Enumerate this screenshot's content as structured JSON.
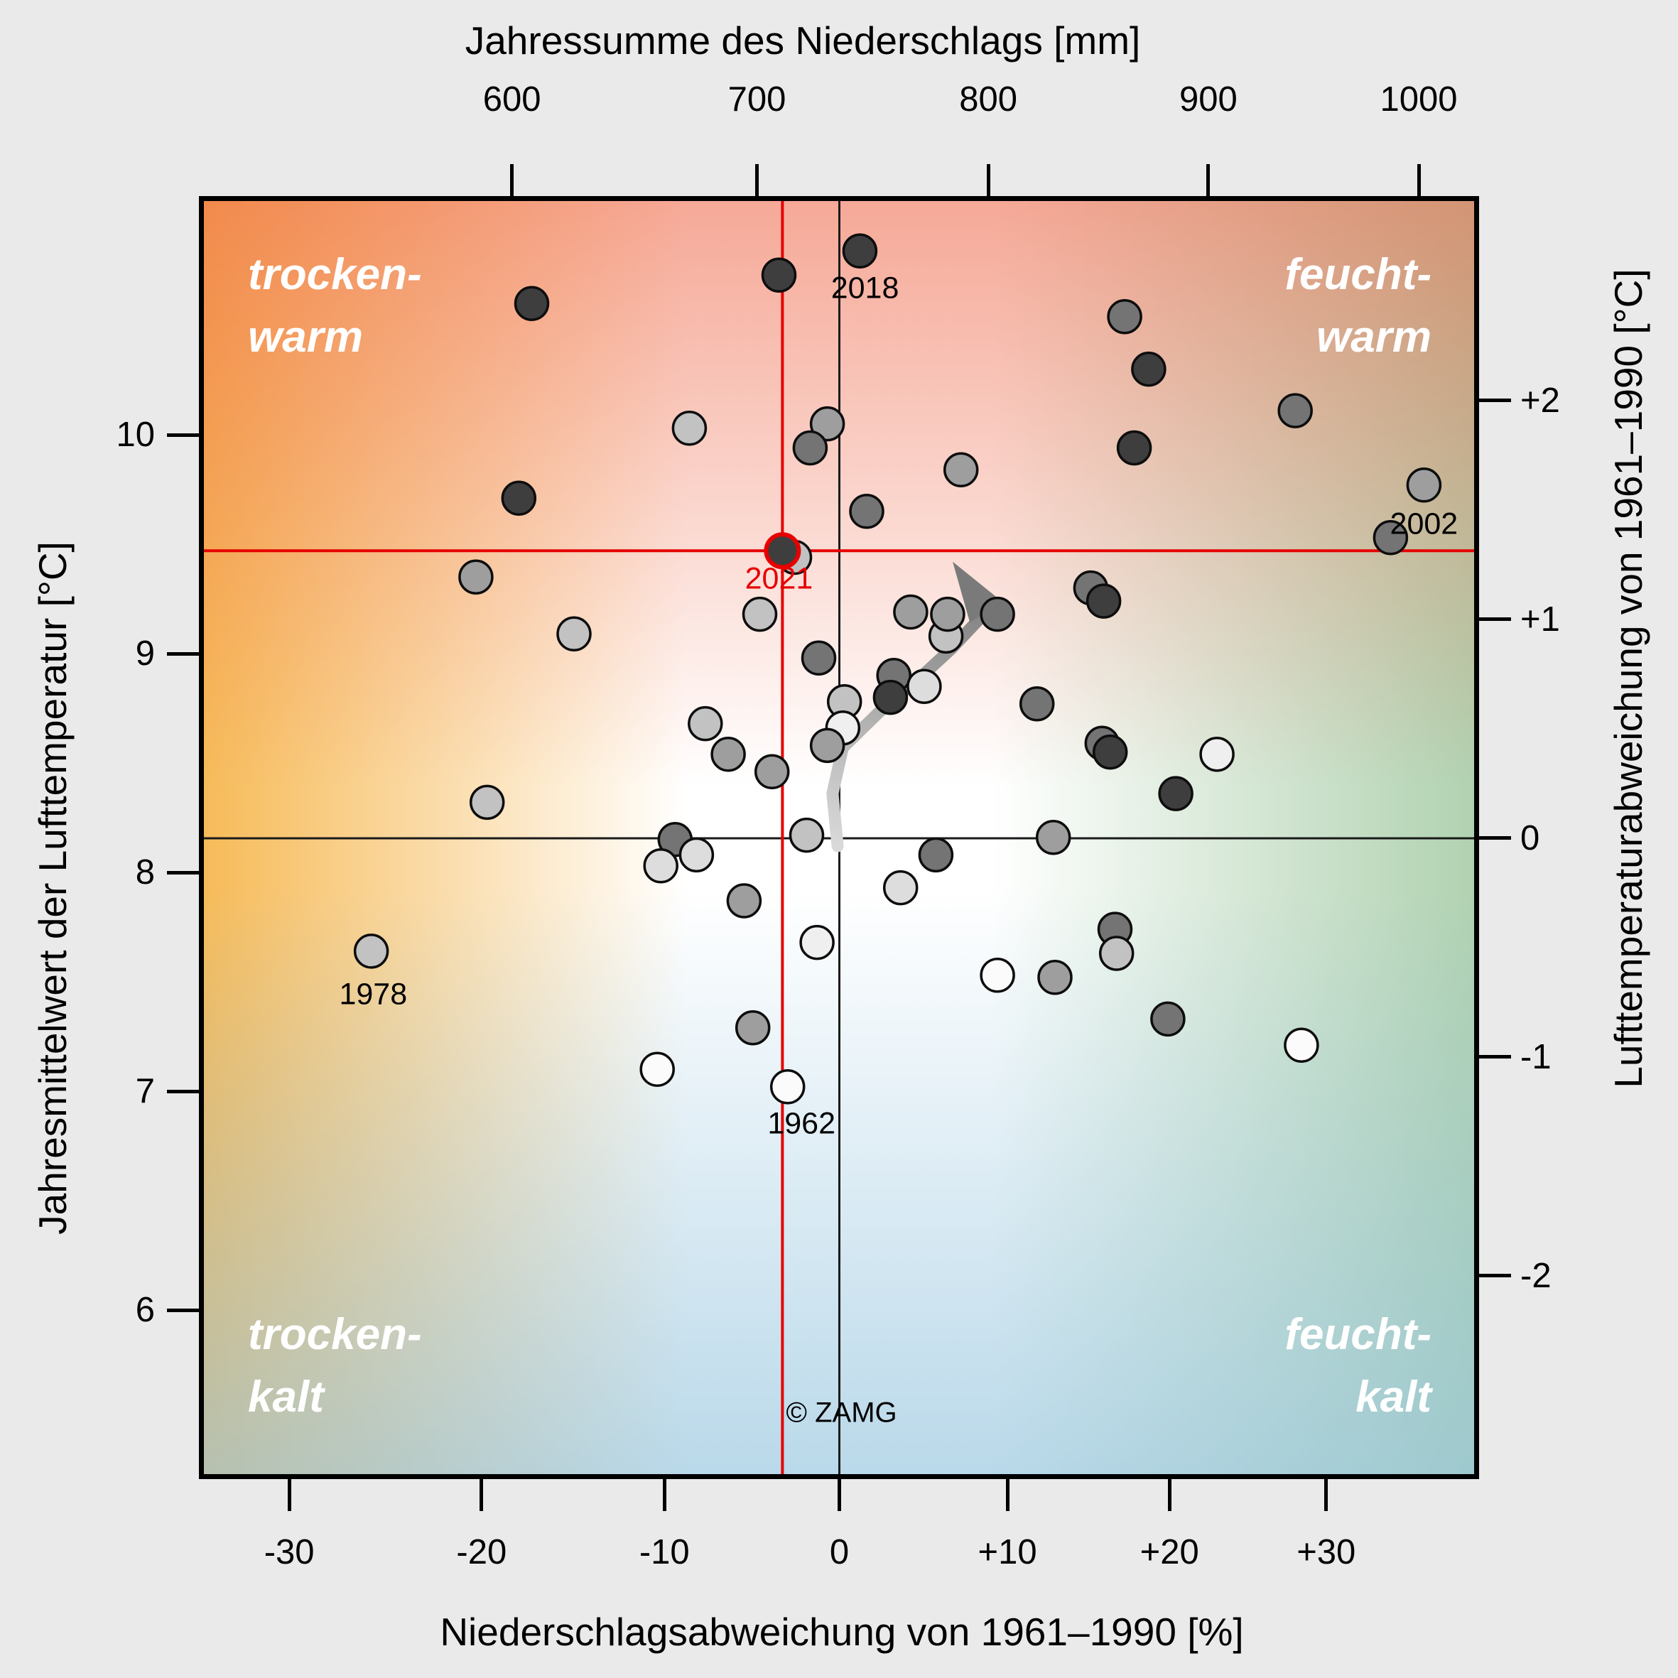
{
  "chart_data": {
    "type": "scatter",
    "source_watermark": "© ZAMG",
    "axes": {
      "top": {
        "label": "Jahressumme des Niederschlags [mm]",
        "ticks": [
          {
            "mm": 600,
            "label": "600"
          },
          {
            "mm": 700,
            "label": "700"
          },
          {
            "mm": 800,
            "label": "800"
          },
          {
            "mm": 900,
            "label": "900"
          },
          {
            "mm": 1000,
            "label": "1000"
          }
        ]
      },
      "bottom": {
        "label": "Niederschlagsabweichung von 1961–1990 [%]",
        "ticks": [
          {
            "pct": -30,
            "label": "-30"
          },
          {
            "pct": -20,
            "label": "-20"
          },
          {
            "pct": -10,
            "label": "-10"
          },
          {
            "pct": 0,
            "label": "0"
          },
          {
            "pct": 10,
            "label": "+10"
          },
          {
            "pct": 20,
            "label": "+20"
          },
          {
            "pct": 30,
            "label": "+30"
          }
        ]
      },
      "left": {
        "label": "Jahresmittelwert der Lufttemperatur [°C]",
        "ticks": [
          {
            "t": 6,
            "label": "6"
          },
          {
            "t": 7,
            "label": "7"
          },
          {
            "t": 8,
            "label": "8"
          },
          {
            "t": 9,
            "label": "9"
          },
          {
            "t": 10,
            "label": "10"
          }
        ]
      },
      "right": {
        "label": "Lufttemperaturabweichung von 1961–1990 [°C]",
        "ticks": [
          {
            "off": -2,
            "label": "-2"
          },
          {
            "off": -1,
            "label": "-1"
          },
          {
            "off": 0,
            "label": "0"
          },
          {
            "off": 1,
            "label": "+1"
          },
          {
            "off": 2,
            "label": "+2"
          }
        ]
      }
    },
    "baseline": {
      "temp_mean_c": 8.16,
      "precip_normal_mm": 735
    },
    "reference_lines": {
      "black_cross": {
        "pct": 0,
        "temp": 8.156
      },
      "red_cross": {
        "pct": -3.3,
        "temp": 9.47
      }
    },
    "colors": {
      "accent_red": "#e60000",
      "line_black": "#1a1a1a",
      "point_stroke": "#0d0d0d",
      "shade_palette": [
        "#fbfbfb",
        "#efefef",
        "#dddddd",
        "#c2c2c2",
        "#9e9e9e",
        "#747474",
        "#3e3e3e"
      ],
      "trend_gradient": [
        "#d9d9d9",
        "#7a7a7a"
      ]
    },
    "quadrant_labels": [
      {
        "name": "trocken-warm",
        "text": "trocken-\nwarm",
        "corner": "top-left"
      },
      {
        "name": "feucht-warm",
        "text": "feucht-\nwarm",
        "corner": "top-right"
      },
      {
        "name": "trocken-kalt",
        "text": "trocken-\nkalt",
        "corner": "bottom-left"
      },
      {
        "name": "feucht-kalt",
        "text": "feucht-\nkalt",
        "corner": "bottom-right"
      }
    ],
    "points": [
      {
        "p": -17.3,
        "t": 10.6,
        "s": 6
      },
      {
        "p": -18.0,
        "t": 9.71,
        "s": 6
      },
      {
        "p": -20.3,
        "t": 9.35,
        "s": 4
      },
      {
        "p": -15.0,
        "t": 9.09,
        "s": 3
      },
      {
        "p": 1.2,
        "t": 10.84,
        "s": 6,
        "year": "2018"
      },
      {
        "p": -3.5,
        "t": 10.73,
        "s": 6
      },
      {
        "p": -8.6,
        "t": 10.03,
        "s": 3
      },
      {
        "p": -0.7,
        "t": 10.05,
        "s": 4
      },
      {
        "p": -1.7,
        "t": 9.94,
        "s": 5
      },
      {
        "p": 7.2,
        "t": 9.84,
        "s": 4
      },
      {
        "p": 1.6,
        "t": 9.65,
        "s": 5
      },
      {
        "p": -2.6,
        "t": 9.44,
        "s": 3
      },
      {
        "p": -3.3,
        "t": 9.47,
        "s": 6,
        "year": "2021",
        "ring": true
      },
      {
        "p": -4.6,
        "t": 9.18,
        "s": 3
      },
      {
        "p": 4.2,
        "t": 9.19,
        "s": 4
      },
      {
        "p": 6.3,
        "t": 9.08,
        "s": 3
      },
      {
        "p": 6.4,
        "t": 9.18,
        "s": 4
      },
      {
        "p": 9.4,
        "t": 9.18,
        "s": 5
      },
      {
        "p": 15.1,
        "t": 9.3,
        "s": 5
      },
      {
        "p": 15.9,
        "t": 9.24,
        "s": 6
      },
      {
        "p": 17.2,
        "t": 10.54,
        "s": 5
      },
      {
        "p": 18.7,
        "t": 10.3,
        "s": 6
      },
      {
        "p": 28.0,
        "t": 10.11,
        "s": 5
      },
      {
        "p": 17.8,
        "t": 9.94,
        "s": 6
      },
      {
        "p": 36.4,
        "t": 9.77,
        "s": 4
      },
      {
        "p": 34.2,
        "t": 9.53,
        "s": 5,
        "year": "2002"
      },
      {
        "p": -19.7,
        "t": 8.32,
        "s": 3
      },
      {
        "p": -25.8,
        "t": 7.64,
        "s": 3,
        "year": "1978"
      },
      {
        "p": -1.2,
        "t": 8.98,
        "s": 5
      },
      {
        "p": 3.2,
        "t": 8.9,
        "s": 5
      },
      {
        "p": 3.0,
        "t": 8.8,
        "s": 6
      },
      {
        "p": 5.0,
        "t": 8.85,
        "s": 2
      },
      {
        "p": 0.3,
        "t": 8.78,
        "s": 3
      },
      {
        "p": 0.2,
        "t": 8.66,
        "s": 1
      },
      {
        "p": -0.7,
        "t": 8.58,
        "s": 4
      },
      {
        "p": 11.8,
        "t": 8.77,
        "s": 5
      },
      {
        "p": 15.8,
        "t": 8.59,
        "s": 5
      },
      {
        "p": 16.3,
        "t": 8.55,
        "s": 6
      },
      {
        "p": -7.7,
        "t": 8.68,
        "s": 3
      },
      {
        "p": -6.4,
        "t": 8.54,
        "s": 4
      },
      {
        "p": -3.9,
        "t": 8.46,
        "s": 4
      },
      {
        "p": -1.9,
        "t": 8.17,
        "s": 3
      },
      {
        "p": -9.4,
        "t": 8.15,
        "s": 5
      },
      {
        "p": -8.2,
        "t": 8.08,
        "s": 2
      },
      {
        "p": -10.2,
        "t": 8.03,
        "s": 2
      },
      {
        "p": 5.7,
        "t": 8.08,
        "s": 5
      },
      {
        "p": 12.8,
        "t": 8.16,
        "s": 4
      },
      {
        "p": 3.6,
        "t": 7.93,
        "s": 2
      },
      {
        "p": -5.5,
        "t": 7.87,
        "s": 4
      },
      {
        "p": -1.3,
        "t": 7.68,
        "s": 1
      },
      {
        "p": 9.4,
        "t": 7.53,
        "s": 0
      },
      {
        "p": 12.9,
        "t": 7.52,
        "s": 4
      },
      {
        "p": 16.6,
        "t": 7.74,
        "s": 5
      },
      {
        "p": 16.7,
        "t": 7.63,
        "s": 3
      },
      {
        "p": -5.0,
        "t": 7.29,
        "s": 4
      },
      {
        "p": -10.4,
        "t": 7.1,
        "s": 0
      },
      {
        "p": -3.0,
        "t": 7.02,
        "s": 0,
        "year": "1962"
      },
      {
        "p": 23.0,
        "t": 8.54,
        "s": 1
      },
      {
        "p": 20.4,
        "t": 8.36,
        "s": 6
      },
      {
        "p": 19.9,
        "t": 7.33,
        "s": 5
      },
      {
        "p": 28.4,
        "t": 7.21,
        "s": 0
      }
    ],
    "year_labels": [
      {
        "year": "2018",
        "p": 1.5,
        "t": 10.67,
        "color": "#000000"
      },
      {
        "year": "2021",
        "p": -3.5,
        "t": 9.34,
        "color": "#e60000"
      },
      {
        "year": "2002",
        "p": 36.4,
        "t": 9.59,
        "color": "#000000"
      },
      {
        "year": "1978",
        "p": -25.7,
        "t": 7.44,
        "color": "#000000"
      },
      {
        "year": "1962",
        "p": -2.2,
        "t": 6.85,
        "color": "#000000"
      }
    ],
    "trend": {
      "path": [
        [
          -0.1,
          8.12
        ],
        [
          -0.4,
          8.36
        ],
        [
          0.2,
          8.57
        ],
        [
          2.3,
          8.73
        ],
        [
          4.9,
          8.9
        ],
        [
          6.6,
          9.02
        ],
        [
          8.7,
          9.19
        ]
      ],
      "tip": [
        6.7,
        9.42
      ]
    }
  }
}
